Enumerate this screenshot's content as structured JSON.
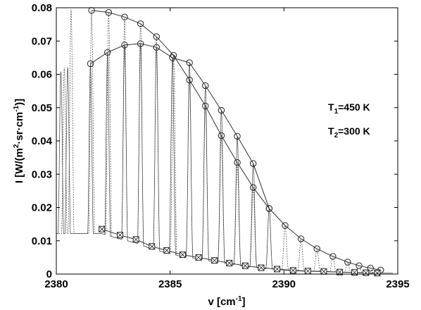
{
  "chart_data": {
    "type": "line",
    "title": "",
    "xlabel_parts": [
      "v [cm",
      "-1",
      "]"
    ],
    "ylabel_parts": [
      "I [W/(m",
      "2",
      "·sr·cm",
      "-1",
      ")]"
    ],
    "xlim": [
      2380,
      2395
    ],
    "ylim": [
      0,
      0.08
    ],
    "xticks": [
      "2380",
      "2385",
      "2390",
      "2395"
    ],
    "yticks": [
      "0",
      "0.01",
      "0.02",
      "0.03",
      "0.04",
      "0.05",
      "0.06",
      "0.07",
      "0.08"
    ],
    "grid": false,
    "annotations": [
      {
        "parts": [
          "T",
          "1",
          "=450 K"
        ]
      },
      {
        "parts": [
          "T",
          "2",
          "=300 K"
        ]
      }
    ],
    "series": [
      {
        "marker": "circle",
        "x": [
          2381.55,
          2382.3,
          2383.0,
          2383.7,
          2384.4,
          2385.15,
          2385.85,
          2386.55,
          2387.25,
          2387.95,
          2388.65,
          2389.35,
          2390.05,
          2390.75,
          2391.45,
          2392.15,
          2392.8,
          2393.3,
          2393.8,
          2394.25
        ],
        "y": [
          0.0792,
          0.0786,
          0.0772,
          0.0752,
          0.0713,
          0.0657,
          0.0583,
          0.0505,
          0.0416,
          0.0335,
          0.026,
          0.0197,
          0.0146,
          0.0106,
          0.0076,
          0.0053,
          0.0036,
          0.0025,
          0.0018,
          0.0012
        ]
      },
      {
        "marker": "circle",
        "x": [
          2381.5,
          2382.25,
          2383.0,
          2383.7,
          2384.4,
          2385.1,
          2385.85,
          2386.55,
          2387.25,
          2387.95,
          2388.65,
          2389.35
        ],
        "y": [
          0.0632,
          0.0666,
          0.0688,
          0.0692,
          0.0681,
          0.065,
          0.0635,
          0.0566,
          0.0492,
          0.0414,
          0.0332,
          0.0197
        ]
      },
      {
        "marker": "square-x",
        "x": [
          2382.0,
          2382.8,
          2383.5,
          2384.2,
          2384.85,
          2385.55,
          2386.25,
          2386.95,
          2387.6,
          2388.3,
          2389.0,
          2389.7,
          2390.4,
          2391.05,
          2391.75,
          2392.45,
          2393.1,
          2393.6,
          2394.1
        ],
        "y": [
          0.0135,
          0.0117,
          0.0104,
          0.0083,
          0.0071,
          0.0058,
          0.005,
          0.0041,
          0.0033,
          0.0025,
          0.0019,
          0.0015,
          0.0011,
          0.0009,
          0.0008,
          0.0006,
          0.0005,
          0.0004,
          0.0003
        ]
      }
    ]
  }
}
